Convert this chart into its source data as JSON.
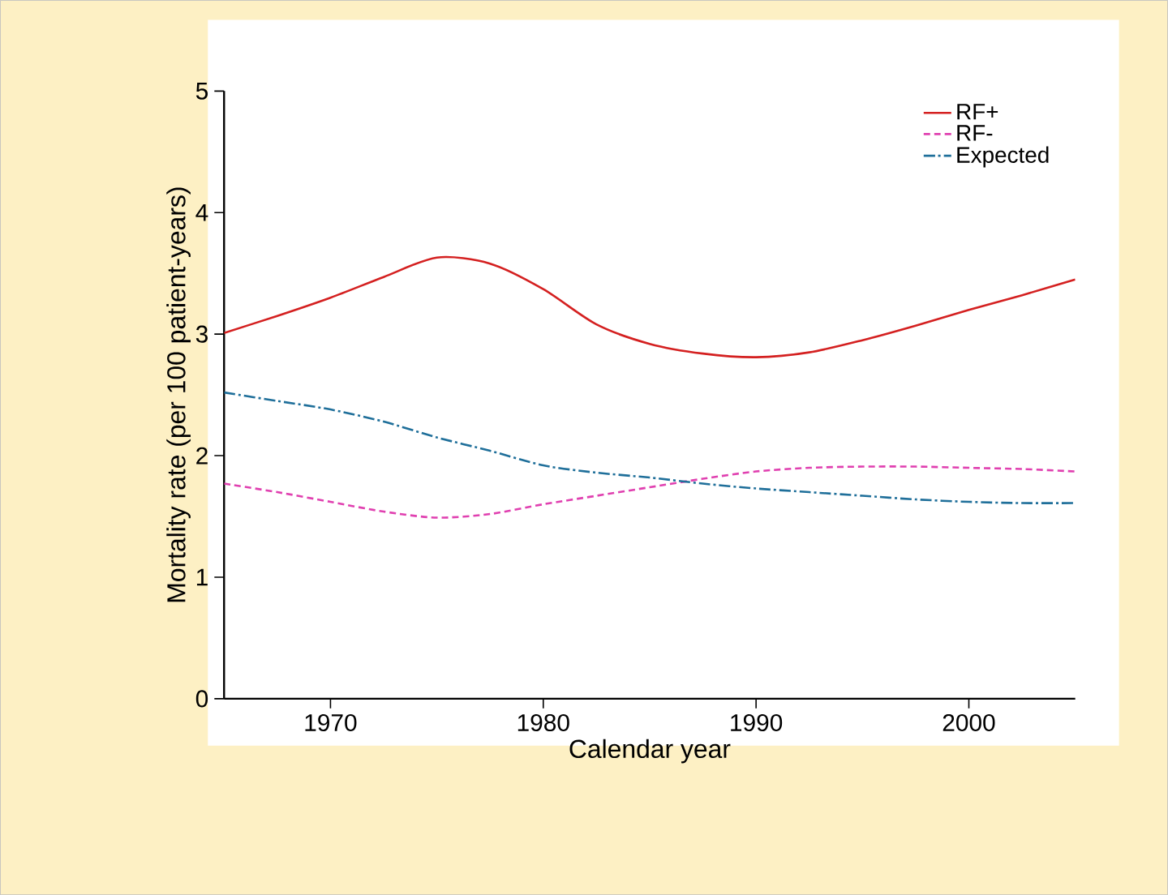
{
  "chart_data": {
    "type": "line",
    "xlabel": "Calendar year",
    "ylabel": "Mortality rate (per 100 patient-years)",
    "x": [
      1965,
      1967.5,
      1970,
      1972.5,
      1975,
      1977.5,
      1980,
      1982.5,
      1985,
      1987.5,
      1990,
      1992.5,
      1995,
      1997.5,
      2000,
      2002.5,
      2005
    ],
    "series": [
      {
        "name": "RF+",
        "color": "#d42020",
        "line_style": "solid",
        "values": [
          3.01,
          3.15,
          3.3,
          3.47,
          3.63,
          3.58,
          3.37,
          3.08,
          2.92,
          2.84,
          2.81,
          2.85,
          2.95,
          3.07,
          3.2,
          3.32,
          3.45
        ]
      },
      {
        "name": "RF-",
        "color": "#e040b0",
        "line_style": "dashed",
        "values": [
          1.77,
          1.7,
          1.62,
          1.54,
          1.49,
          1.52,
          1.6,
          1.67,
          1.74,
          1.81,
          1.87,
          1.9,
          1.91,
          1.91,
          1.9,
          1.89,
          1.87
        ]
      },
      {
        "name": "Expected",
        "color": "#1f6f9a",
        "line_style": "dashdot",
        "values": [
          2.52,
          2.45,
          2.38,
          2.28,
          2.15,
          2.04,
          1.92,
          1.86,
          1.82,
          1.77,
          1.73,
          1.7,
          1.67,
          1.64,
          1.62,
          1.61,
          1.61
        ]
      }
    ],
    "xlim": [
      1965,
      2005
    ],
    "xticks": [
      1970,
      1980,
      1990,
      2000
    ],
    "ylim": [
      0,
      5
    ],
    "yticks": [
      0,
      1,
      2,
      3,
      4,
      5
    ],
    "legend": "top right",
    "grid": false,
    "marker": "none"
  }
}
